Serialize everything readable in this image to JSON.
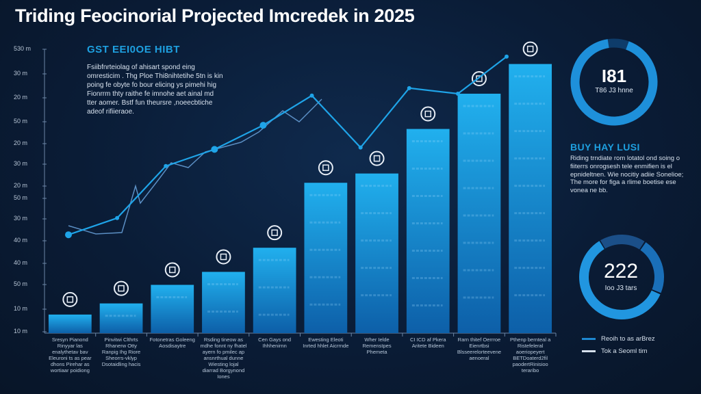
{
  "title": "Triding Feocinorial Projected Imcredek in 2025",
  "intro": {
    "heading": "GST EEI0OE HIBT",
    "body": "Fsiibfnrteiolag of ahisart spond eing omresticim . Thg Ploe Thi8nihtetihe 5tn is kin poing fe obyte fo bour elicing ys pimehi hig Fionrrm thty raithe fe imnohe aet ainal md tter aomer. Bstf fun theursre ,noeecbtiche adeof rifiieraoe."
  },
  "side_panel": {
    "donut1": {
      "value": "I81",
      "subtitle": "T86 J3 hnne",
      "fraction": 0.92
    },
    "heading": "BUY HAY LUSI",
    "body": "Riding trndiate rom lotatol ond soing o fiiterrs onrogsesh tele enmifien is el epnideltnen. Wie nocitiy adiie Sonelioe; The more for figa a rlime boetise ese vonea ne bb.",
    "donut2": {
      "value": "222",
      "subtitle": "Ioo J3 tars",
      "segments": [
        0.18,
        0.22,
        0.6
      ]
    },
    "legend": [
      {
        "label": "Reoih to as arBrez",
        "color": "#1e88d0"
      },
      {
        "label": "Tok a Seoml tim",
        "color": "#d6e0ec"
      }
    ]
  },
  "colors": {
    "bar_top": "#21b0ee",
    "bar_bottom": "#0d5fa8",
    "line_main": "#1fa4e8",
    "line_secondary": "#5b8fc4"
  },
  "chart_data": {
    "type": "bar",
    "title": "Triding Feocinorial Projected Imcredek in 2025",
    "y_tick_labels": [
      "530 m",
      "30 m",
      "20 m",
      "50 m",
      "20 m",
      "30 m",
      "20 m",
      "50 m",
      "30 m",
      "40 m",
      "40 m",
      "50 m",
      "10 m",
      "10 m"
    ],
    "categories": [
      "Sresyn Pianond Rinyyar las enalythetav bav Eleuroni ts as pear dhons Pirehar as wortiaar poidiong",
      "Pinvitwi Clthrts Rhanerw Otty Ranpig Ihg Riore Sheorrs-vklyp Dsotaidling hacis",
      "Fotonetras Goleeng Aosdisaytre",
      "Rsding tineow as mdhe fonnt ny fhatel ayern fo pmilec ap ansnrthual dunne Wiesting lojal diarrad Borgynond Iones",
      "Cen Gays ond Ihhhenirnn",
      "Ewesting Eleoti Inrted hhlet Aicrrnde",
      "Wher Ielde Remenstpes Phemeta",
      "CI ICD af Pkera Aritete Bideen",
      "Rarn thitef Oerrroe Eienrtbsi Blsseerelorteevene aenoeral",
      "Pthenp bernteal a Ristefeleral aoeriopeyert BETDoaterd2fil paodertRinisioo teraribo"
    ],
    "series": [
      {
        "name": "bars",
        "values": [
          1.0,
          1.6,
          2.6,
          3.3,
          4.6,
          8.1,
          8.6,
          11.0,
          12.9,
          14.5
        ]
      },
      {
        "name": "trend",
        "values": [
          5.3,
          6.2,
          9.0,
          9.9,
          11.2,
          12.8,
          10.0,
          13.2,
          12.9,
          14.9
        ]
      }
    ],
    "ylim": [
      0,
      15
    ],
    "xlabel": "",
    "ylabel": "",
    "grid": false
  }
}
